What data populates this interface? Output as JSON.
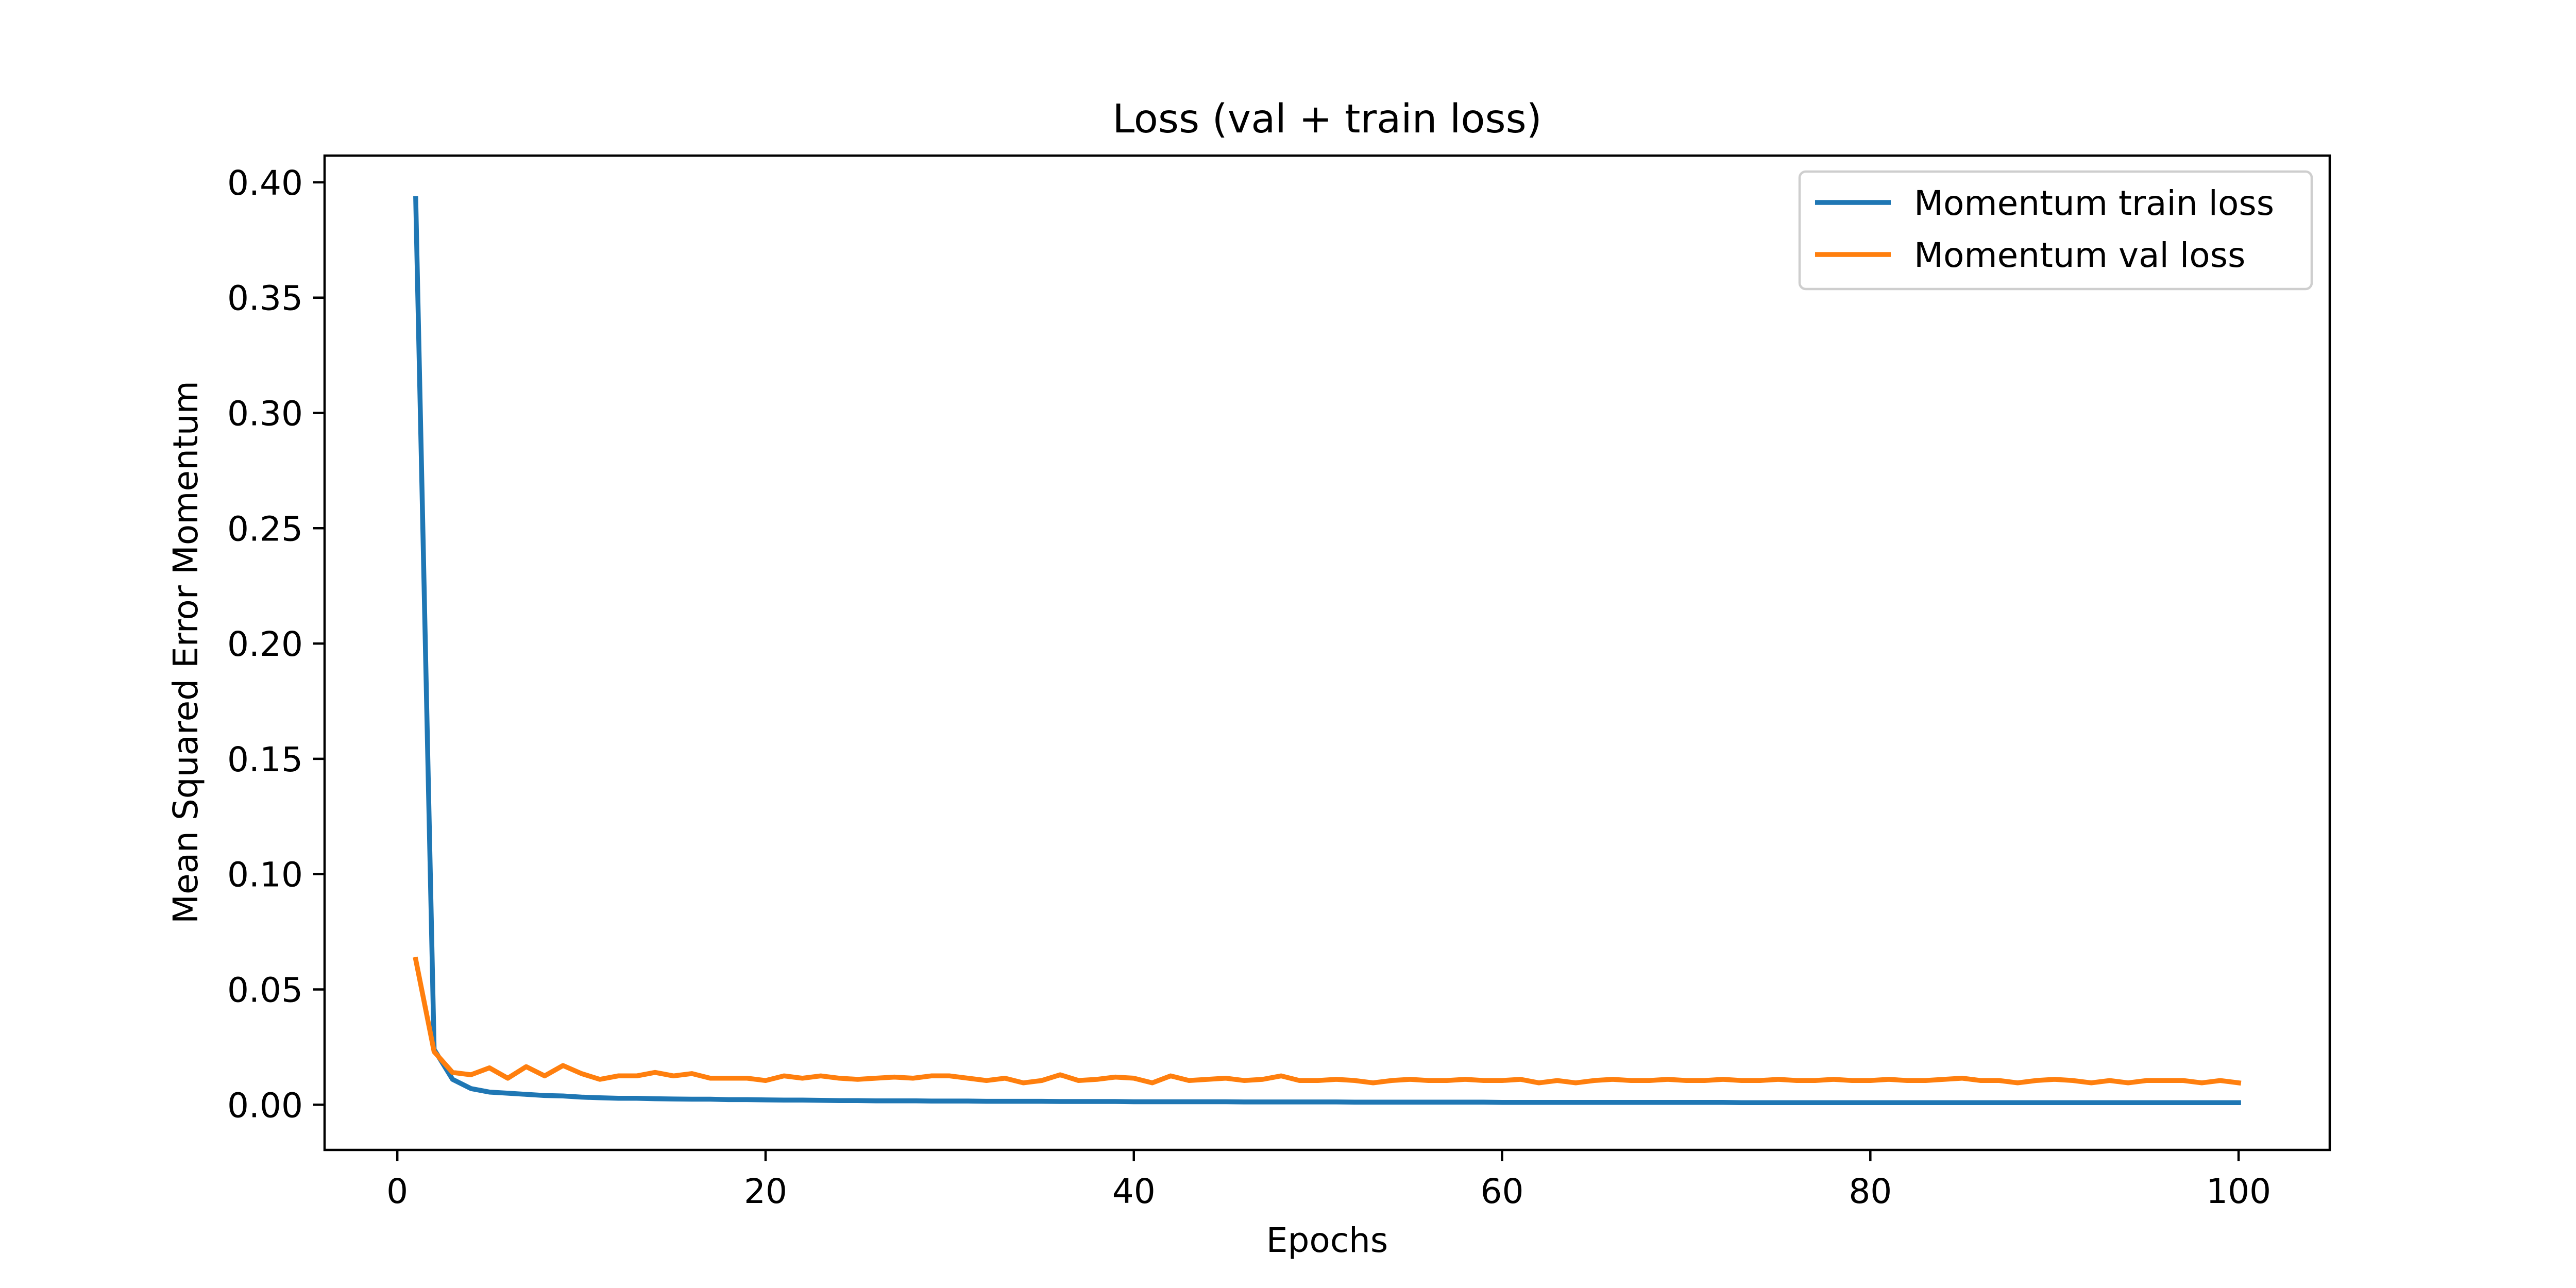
{
  "chart_data": {
    "type": "line",
    "title": "Loss (val + train loss)",
    "xlabel": "Epochs",
    "ylabel": "Mean Squared Error Momentum",
    "xlim": [
      -3.95,
      104.95
    ],
    "ylim": [
      -0.0196,
      0.4116
    ],
    "xticks": [
      0,
      20,
      40,
      60,
      80,
      100
    ],
    "yticks": [
      0.0,
      0.05,
      0.1,
      0.15,
      0.2,
      0.25,
      0.3,
      0.35,
      0.4
    ],
    "ytick_labels": [
      "0.00",
      "0.05",
      "0.10",
      "0.15",
      "0.20",
      "0.25",
      "0.30",
      "0.35",
      "0.40"
    ],
    "grid": false,
    "legend_position": "top-right",
    "x": [
      1,
      2,
      3,
      4,
      5,
      6,
      7,
      8,
      9,
      10,
      11,
      12,
      13,
      14,
      15,
      16,
      17,
      18,
      19,
      20,
      21,
      22,
      23,
      24,
      25,
      26,
      27,
      28,
      29,
      30,
      31,
      32,
      33,
      34,
      35,
      36,
      37,
      38,
      39,
      40,
      41,
      42,
      43,
      44,
      45,
      46,
      47,
      48,
      49,
      50,
      51,
      52,
      53,
      54,
      55,
      56,
      57,
      58,
      59,
      60,
      61,
      62,
      63,
      64,
      65,
      66,
      67,
      68,
      69,
      70,
      71,
      72,
      73,
      74,
      75,
      76,
      77,
      78,
      79,
      80,
      81,
      82,
      83,
      84,
      85,
      86,
      87,
      88,
      89,
      90,
      91,
      92,
      93,
      94,
      95,
      96,
      97,
      98,
      99,
      100
    ],
    "series": [
      {
        "name": "Momentum train loss",
        "color": "#1f77b4",
        "values": [
          0.393,
          0.024,
          0.011,
          0.007,
          0.0055,
          0.005,
          0.0045,
          0.004,
          0.0038,
          0.0033,
          0.003,
          0.0028,
          0.0028,
          0.0026,
          0.0025,
          0.0024,
          0.0024,
          0.0022,
          0.0022,
          0.0021,
          0.002,
          0.002,
          0.0019,
          0.0018,
          0.0018,
          0.0017,
          0.0017,
          0.0017,
          0.0016,
          0.0016,
          0.0016,
          0.0015,
          0.0015,
          0.0015,
          0.0015,
          0.0014,
          0.0014,
          0.0014,
          0.0014,
          0.0013,
          0.0013,
          0.0013,
          0.0013,
          0.0013,
          0.0013,
          0.0012,
          0.0012,
          0.0012,
          0.0012,
          0.0012,
          0.0012,
          0.0011,
          0.0011,
          0.0011,
          0.0011,
          0.0011,
          0.0011,
          0.0011,
          0.0011,
          0.001,
          0.001,
          0.001,
          0.001,
          0.001,
          0.001,
          0.001,
          0.001,
          0.001,
          0.001,
          0.001,
          0.001,
          0.001,
          0.0009,
          0.0009,
          0.0009,
          0.0009,
          0.0009,
          0.0009,
          0.0009,
          0.0009,
          0.0009,
          0.0009,
          0.0009,
          0.0009,
          0.0009,
          0.0009,
          0.0009,
          0.0009,
          0.0009,
          0.0009,
          0.0009,
          0.0009,
          0.0009,
          0.0009,
          0.0009,
          0.0009,
          0.0009,
          0.0009,
          0.0009,
          0.0009
        ]
      },
      {
        "name": "Momentum val loss",
        "color": "#ff7f0e",
        "values": [
          0.063,
          0.023,
          0.014,
          0.013,
          0.016,
          0.0115,
          0.0165,
          0.0125,
          0.017,
          0.0135,
          0.011,
          0.0125,
          0.0125,
          0.014,
          0.0125,
          0.0135,
          0.0115,
          0.0115,
          0.0115,
          0.0105,
          0.0125,
          0.0115,
          0.0125,
          0.0115,
          0.011,
          0.0115,
          0.012,
          0.0115,
          0.0125,
          0.0125,
          0.0115,
          0.0105,
          0.0115,
          0.0095,
          0.0105,
          0.013,
          0.0105,
          0.011,
          0.012,
          0.0115,
          0.0095,
          0.0125,
          0.0105,
          0.011,
          0.0115,
          0.0105,
          0.011,
          0.0125,
          0.0105,
          0.0105,
          0.011,
          0.0105,
          0.0095,
          0.0105,
          0.011,
          0.0105,
          0.0105,
          0.011,
          0.0105,
          0.0105,
          0.011,
          0.0095,
          0.0105,
          0.0095,
          0.0105,
          0.011,
          0.0105,
          0.0105,
          0.011,
          0.0105,
          0.0105,
          0.011,
          0.0105,
          0.0105,
          0.011,
          0.0105,
          0.0105,
          0.011,
          0.0105,
          0.0105,
          0.011,
          0.0105,
          0.0105,
          0.011,
          0.0115,
          0.0105,
          0.0105,
          0.0095,
          0.0105,
          0.011,
          0.0105,
          0.0095,
          0.0105,
          0.0095,
          0.0105,
          0.0105,
          0.0105,
          0.0095,
          0.0105,
          0.0095
        ]
      }
    ]
  }
}
